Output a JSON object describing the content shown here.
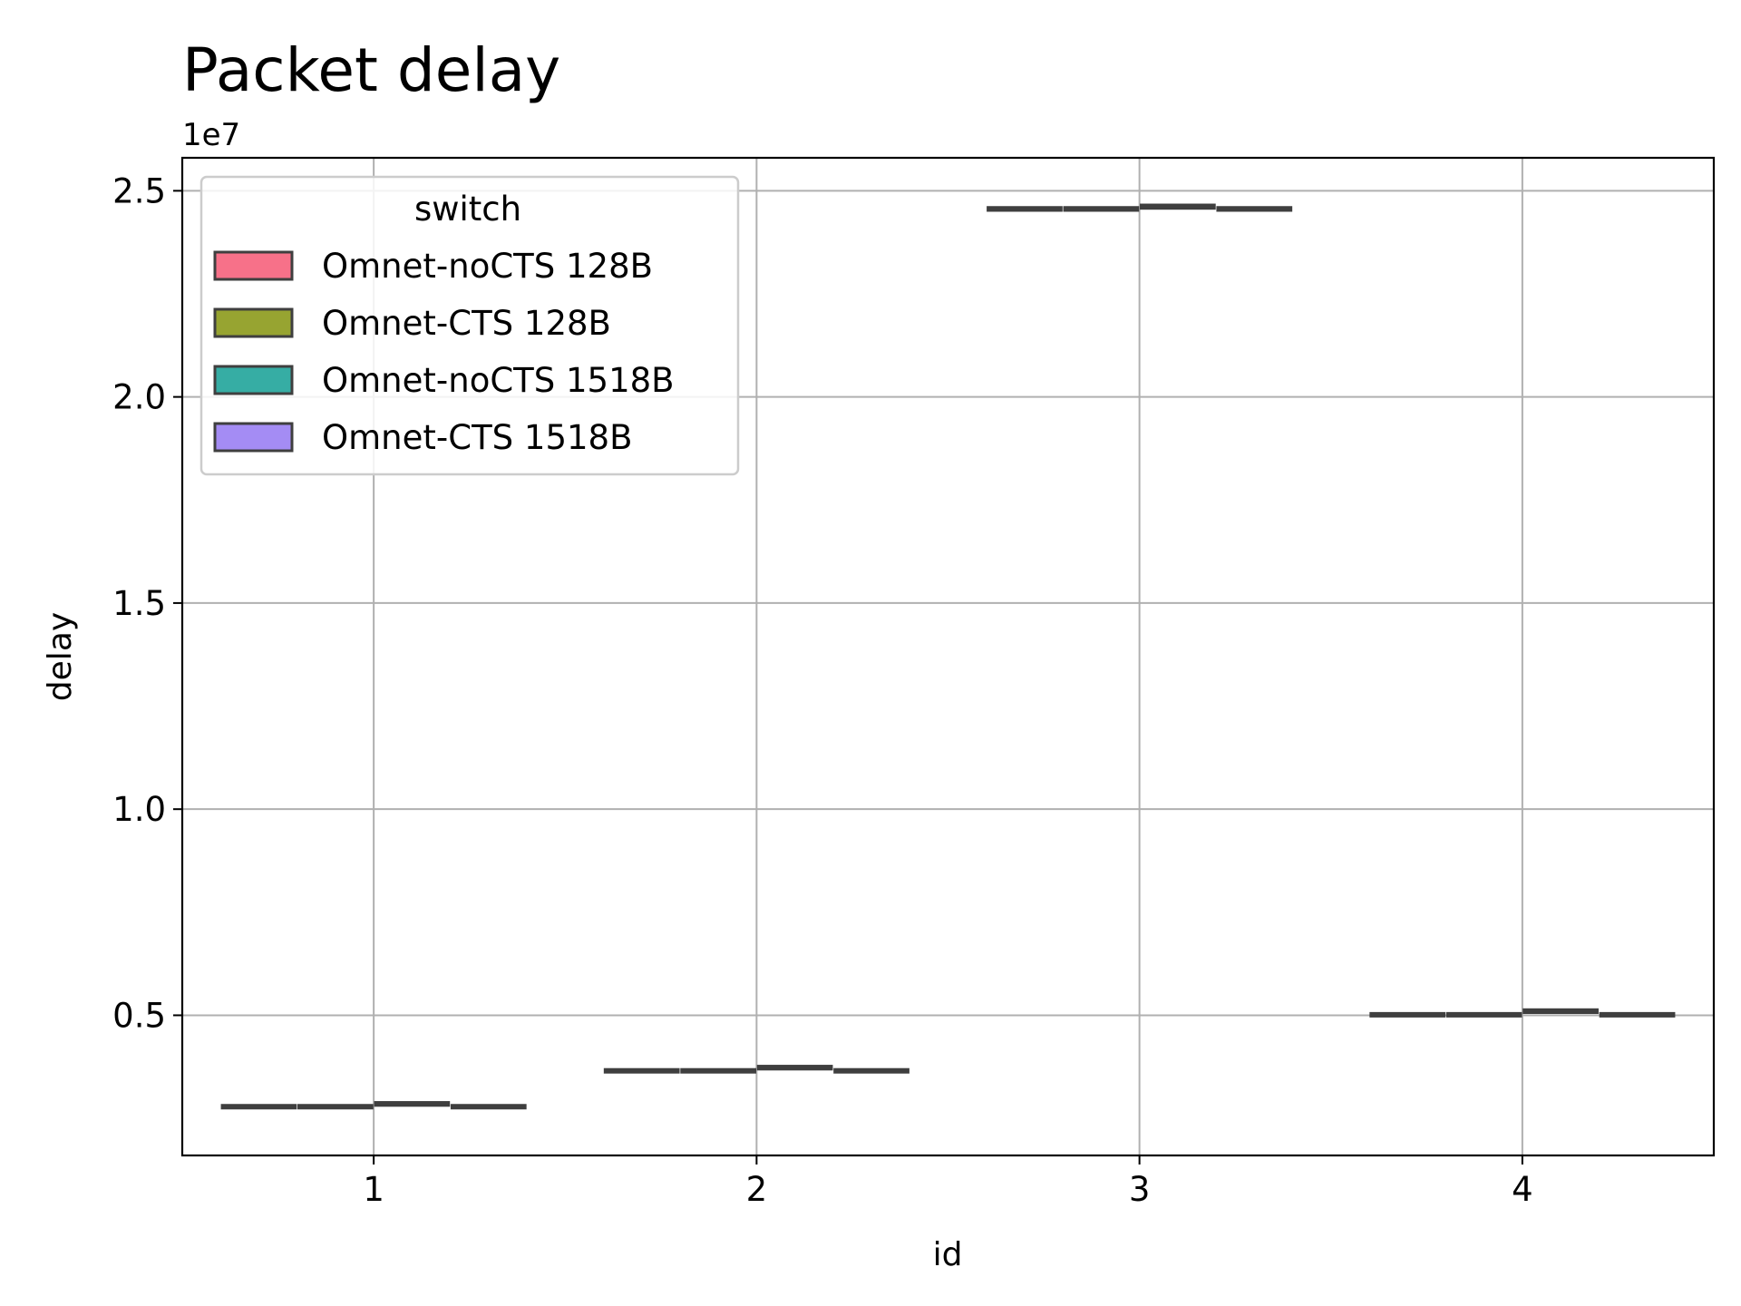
{
  "chart_data": {
    "type": "box",
    "title": "Packet delay",
    "xlabel": "id",
    "ylabel": "delay",
    "y_offset_label": "1e7",
    "categories": [
      "1",
      "2",
      "3",
      "4"
    ],
    "y_ticks": [
      0.5,
      1.0,
      1.5,
      2.0,
      2.5
    ],
    "y_tick_labels": [
      "0.5",
      "1.0",
      "1.5",
      "2.0",
      "2.5"
    ],
    "ylim": [
      0.16,
      2.58
    ],
    "y_unit_multiplier": 10000000,
    "grid": true,
    "legend": {
      "title": "switch",
      "placement": "upper left",
      "entries": [
        "Omnet-noCTS 128B",
        "Omnet-CTS 128B",
        "Omnet-noCTS 1518B",
        "Omnet-CTS 1518B"
      ]
    },
    "series": [
      {
        "name": "Omnet-noCTS 128B",
        "color": "#f77189",
        "boxes": [
          {
            "category": "1",
            "q1": 0.277,
            "median": 0.279,
            "q3": 0.281,
            "whisker_low": 0.276,
            "whisker_high": 0.283
          },
          {
            "category": "2",
            "q1": 0.364,
            "median": 0.366,
            "q3": 0.368,
            "whisker_low": 0.363,
            "whisker_high": 0.37
          },
          {
            "category": "3",
            "q1": 2.453,
            "median": 2.456,
            "q3": 2.459,
            "whisker_low": 2.451,
            "whisker_high": 2.461
          },
          {
            "category": "4",
            "q1": 0.5,
            "median": 0.502,
            "q3": 0.504,
            "whisker_low": 0.499,
            "whisker_high": 0.506
          }
        ]
      },
      {
        "name": "Omnet-CTS 128B",
        "color": "#97a431",
        "boxes": [
          {
            "category": "1",
            "q1": 0.277,
            "median": 0.279,
            "q3": 0.281,
            "whisker_low": 0.276,
            "whisker_high": 0.283
          },
          {
            "category": "2",
            "q1": 0.364,
            "median": 0.366,
            "q3": 0.368,
            "whisker_low": 0.363,
            "whisker_high": 0.37
          },
          {
            "category": "3",
            "q1": 2.453,
            "median": 2.456,
            "q3": 2.459,
            "whisker_low": 2.451,
            "whisker_high": 2.461
          },
          {
            "category": "4",
            "q1": 0.5,
            "median": 0.502,
            "q3": 0.504,
            "whisker_low": 0.499,
            "whisker_high": 0.506
          }
        ]
      },
      {
        "name": "Omnet-noCTS 1518B",
        "color": "#36ada4",
        "boxes": [
          {
            "category": "1",
            "q1": 0.282,
            "median": 0.285,
            "q3": 0.288,
            "whisker_low": 0.28,
            "whisker_high": 0.29
          },
          {
            "category": "2",
            "q1": 0.37,
            "median": 0.373,
            "q3": 0.376,
            "whisker_low": 0.368,
            "whisker_high": 0.378
          },
          {
            "category": "3",
            "q1": 2.458,
            "median": 2.461,
            "q3": 2.465,
            "whisker_low": 2.456,
            "whisker_high": 2.467
          },
          {
            "category": "4",
            "q1": 0.507,
            "median": 0.51,
            "q3": 0.513,
            "whisker_low": 0.505,
            "whisker_high": 0.515
          }
        ]
      },
      {
        "name": "Omnet-CTS 1518B",
        "color": "#a48cf4",
        "boxes": [
          {
            "category": "1",
            "q1": 0.277,
            "median": 0.279,
            "q3": 0.281,
            "whisker_low": 0.276,
            "whisker_high": 0.283
          },
          {
            "category": "2",
            "q1": 0.364,
            "median": 0.366,
            "q3": 0.368,
            "whisker_low": 0.363,
            "whisker_high": 0.37
          },
          {
            "category": "3",
            "q1": 2.453,
            "median": 2.456,
            "q3": 2.459,
            "whisker_low": 2.451,
            "whisker_high": 2.461
          },
          {
            "category": "4",
            "q1": 0.5,
            "median": 0.502,
            "q3": 0.504,
            "whisker_low": 0.499,
            "whisker_high": 0.506
          }
        ]
      }
    ]
  }
}
